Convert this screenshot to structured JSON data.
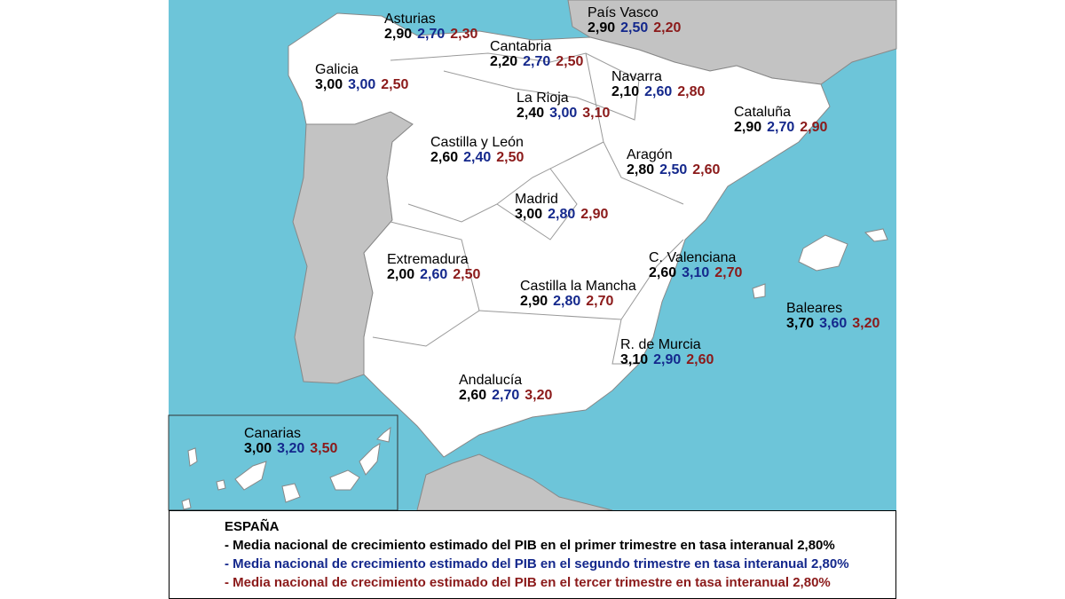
{
  "regions": [
    {
      "name": "Asturias",
      "values": [
        "2,90",
        "2,70",
        "2,30"
      ]
    },
    {
      "name": "País Vasco",
      "values": [
        "2,90",
        "2,50",
        "2,20"
      ]
    },
    {
      "name": "Cantabria",
      "values": [
        "2,20",
        "2,70",
        "2,50"
      ]
    },
    {
      "name": "Galicia",
      "values": [
        "3,00",
        "3,00",
        "2,50"
      ]
    },
    {
      "name": "Navarra",
      "values": [
        "2,10",
        "2,60",
        "2,80"
      ]
    },
    {
      "name": "La Rioja",
      "values": [
        "2,40",
        "3,00",
        "3,10"
      ]
    },
    {
      "name": "Cataluña",
      "values": [
        "2,90",
        "2,70",
        "2,90"
      ]
    },
    {
      "name": "Castilla y León",
      "values": [
        "2,60",
        "2,40",
        "2,50"
      ]
    },
    {
      "name": "Aragón",
      "values": [
        "2,80",
        "2,50",
        "2,60"
      ]
    },
    {
      "name": "Madrid",
      "values": [
        "3,00",
        "2,80",
        "2,90"
      ]
    },
    {
      "name": "C. Valenciana",
      "values": [
        "2,60",
        "3,10",
        "2,70"
      ]
    },
    {
      "name": "Extremadura",
      "values": [
        "2,00",
        "2,60",
        "2,50"
      ]
    },
    {
      "name": "Castilla la Mancha",
      "values": [
        "2,90",
        "2,80",
        "2,70"
      ]
    },
    {
      "name": "Baleares",
      "values": [
        "3,70",
        "3,60",
        "3,20"
      ]
    },
    {
      "name": "R. de Murcia",
      "values": [
        "3,10",
        "2,90",
        "2,60"
      ]
    },
    {
      "name": "Andalucía",
      "values": [
        "2,60",
        "2,70",
        "3,20"
      ]
    },
    {
      "name": "Canarias",
      "values": [
        "3,00",
        "3,20",
        "3,50"
      ]
    }
  ],
  "legend": {
    "title": "ESPAÑA",
    "lines": [
      "- Media nacional de crecimiento estimado del PIB en  el primer trimestre en tasa interanual 2,80%",
      "- Media nacional de crecimiento estimado del PIB en el segundo trimestre en tasa interanual 2,80%",
      "- Media nacional de crecimiento estimado del PIB en el tercer trimestre en tasa interanual 2,80%"
    ]
  }
}
